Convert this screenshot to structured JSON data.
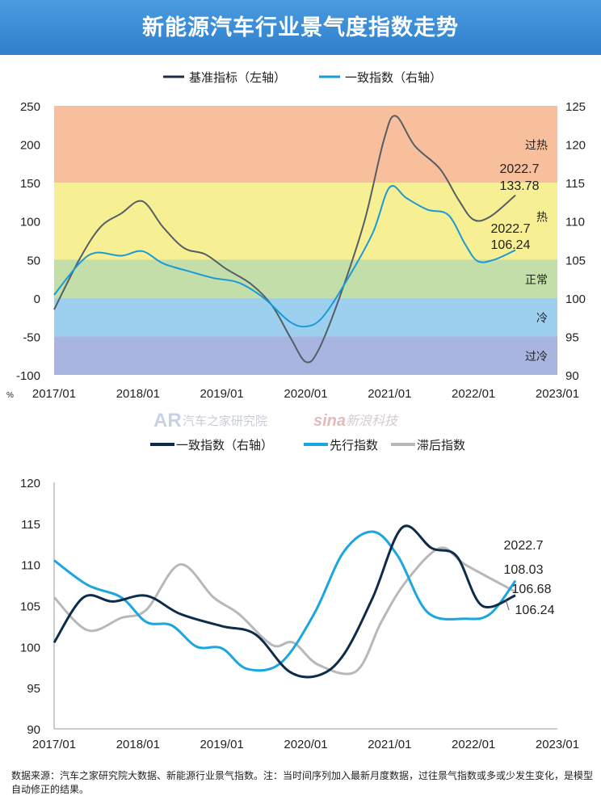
{
  "title": "新能源汽车行业景气度指数走势",
  "colors": {
    "benchmark": "#555d66",
    "coincident_top": "#1a9ad6",
    "coincident": "#0d2c4a",
    "leading": "#1ba6e0",
    "lagging": "#b8b8b8"
  },
  "watermark": {
    "left": "汽车之家研究院",
    "right_logo": "sina",
    "right": "新浪科技"
  },
  "chart_data": [
    {
      "type": "line",
      "legend": "top",
      "x_ticks": [
        "2017/01",
        "2018/01",
        "2019/01",
        "2020/01",
        "2021/01",
        "2022/01",
        "2023/01"
      ],
      "y_left": {
        "unit": "%",
        "ticks": [
          250,
          200,
          150,
          100,
          50,
          0,
          -50,
          -100
        ],
        "range": [
          -100,
          250
        ]
      },
      "y_right": {
        "ticks": [
          125,
          120,
          115,
          110,
          105,
          100,
          95,
          90
        ],
        "range": [
          90,
          125
        ]
      },
      "bands": [
        {
          "label": "过热",
          "from": 150,
          "to": 250,
          "color": "#f7b48c"
        },
        {
          "label": "热",
          "from": 50,
          "to": 150,
          "color": "#f5ec80"
        },
        {
          "label": "正常",
          "from": 0,
          "to": 50,
          "color": "#b8d89a"
        },
        {
          "label": "冷",
          "from": -50,
          "to": 0,
          "color": "#8cc8ec"
        },
        {
          "label": "过冷",
          "from": -100,
          "to": -50,
          "color": "#9aa8dc"
        }
      ],
      "series": [
        {
          "name": "基准指标（左轴）",
          "axis": "left",
          "points": [
            [
              2017.0,
              -15
            ],
            [
              2017.3,
              50
            ],
            [
              2017.55,
              92
            ],
            [
              2017.8,
              110
            ],
            [
              2018.05,
              126
            ],
            [
              2018.3,
              92
            ],
            [
              2018.55,
              65
            ],
            [
              2018.8,
              57
            ],
            [
              2019.05,
              38
            ],
            [
              2019.35,
              18
            ],
            [
              2019.6,
              -10
            ],
            [
              2019.82,
              -52
            ],
            [
              2020.0,
              -83
            ],
            [
              2020.15,
              -68
            ],
            [
              2020.4,
              0
            ],
            [
              2020.7,
              100
            ],
            [
              2020.93,
              205
            ],
            [
              2021.07,
              237
            ],
            [
              2021.3,
              198
            ],
            [
              2021.6,
              168
            ],
            [
              2021.82,
              128
            ],
            [
              2022.0,
              102
            ],
            [
              2022.2,
              106
            ],
            [
              2022.5,
              133.78
            ]
          ]
        },
        {
          "name": "一致指数（右轴）",
          "axis": "right",
          "points": [
            [
              2017.0,
              100.4
            ],
            [
              2017.3,
              104.5
            ],
            [
              2017.5,
              105.9
            ],
            [
              2017.8,
              105.5
            ],
            [
              2018.05,
              106.1
            ],
            [
              2018.3,
              104.5
            ],
            [
              2018.6,
              103.5
            ],
            [
              2018.9,
              102.6
            ],
            [
              2019.2,
              102
            ],
            [
              2019.5,
              100
            ],
            [
              2019.8,
              97
            ],
            [
              2020.0,
              96.3
            ],
            [
              2020.2,
              97.5
            ],
            [
              2020.5,
              102.5
            ],
            [
              2020.8,
              108.5
            ],
            [
              2021.0,
              114.4
            ],
            [
              2021.2,
              113
            ],
            [
              2021.45,
              111.5
            ],
            [
              2021.7,
              110.8
            ],
            [
              2021.9,
              107
            ],
            [
              2022.05,
              104.8
            ],
            [
              2022.25,
              105
            ],
            [
              2022.5,
              106.24
            ]
          ]
        }
      ],
      "annotations": [
        {
          "date": "2022.7",
          "value": "133.78"
        },
        {
          "date": "2022.7",
          "value": "106.24"
        }
      ]
    },
    {
      "type": "line",
      "legend": "top",
      "x_ticks": [
        "2017/01",
        "2018/01",
        "2019/01",
        "2020/01",
        "2021/01",
        "2022/01",
        "2023/01"
      ],
      "y": {
        "ticks": [
          120,
          115,
          110,
          105,
          100,
          95,
          90
        ],
        "range": [
          90,
          120
        ]
      },
      "series": [
        {
          "name": "一致指数（右轴）",
          "points": [
            [
              2017.0,
              100.5
            ],
            [
              2017.35,
              106
            ],
            [
              2017.7,
              105.5
            ],
            [
              2018.1,
              106.2
            ],
            [
              2018.5,
              104
            ],
            [
              2019.0,
              102.5
            ],
            [
              2019.4,
              101.5
            ],
            [
              2019.8,
              97
            ],
            [
              2020.15,
              96.5
            ],
            [
              2020.45,
              99
            ],
            [
              2020.8,
              106
            ],
            [
              2021.15,
              114.5
            ],
            [
              2021.5,
              112
            ],
            [
              2021.8,
              111
            ],
            [
              2022.1,
              105
            ],
            [
              2022.5,
              106.24
            ]
          ]
        },
        {
          "name": "先行指数",
          "points": [
            [
              2017.0,
              110.5
            ],
            [
              2017.4,
              107.5
            ],
            [
              2017.8,
              106
            ],
            [
              2018.1,
              103
            ],
            [
              2018.4,
              102.6
            ],
            [
              2018.7,
              100
            ],
            [
              2019.0,
              99.8
            ],
            [
              2019.3,
              97.3
            ],
            [
              2019.7,
              98
            ],
            [
              2020.1,
              104
            ],
            [
              2020.45,
              111.5
            ],
            [
              2020.8,
              114
            ],
            [
              2021.1,
              111
            ],
            [
              2021.45,
              104.2
            ],
            [
              2021.9,
              103.4
            ],
            [
              2022.2,
              104
            ],
            [
              2022.5,
              108.03
            ]
          ]
        },
        {
          "name": "滞后指数",
          "points": [
            [
              2017.0,
              106
            ],
            [
              2017.4,
              102
            ],
            [
              2017.8,
              103.5
            ],
            [
              2018.1,
              104.5
            ],
            [
              2018.5,
              110
            ],
            [
              2018.9,
              106
            ],
            [
              2019.2,
              104
            ],
            [
              2019.6,
              100.2
            ],
            [
              2019.85,
              100.5
            ],
            [
              2020.15,
              97.8
            ],
            [
              2020.6,
              97
            ],
            [
              2020.9,
              103
            ],
            [
              2021.2,
              108
            ],
            [
              2021.6,
              112
            ],
            [
              2021.9,
              110
            ],
            [
              2022.5,
              106.68
            ]
          ]
        }
      ],
      "annotations": {
        "date": "2022.7",
        "values": [
          "108.03",
          "106.68",
          "106.24"
        ]
      }
    }
  ],
  "footer": "数据来源：汽车之家研究院大数据、新能源行业景气指数。注：当时间序列加入最新月度数据，过往景气指数或多或少发生变化，是模型自动修正的结果。"
}
